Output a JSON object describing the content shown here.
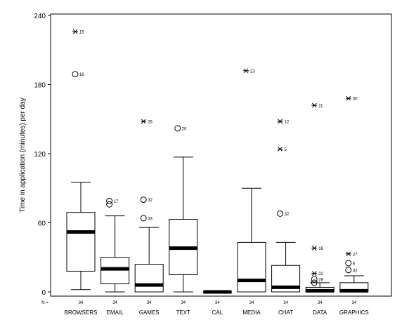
{
  "chart_data": {
    "type": "boxplot",
    "ylabel": "Time in application (minutes) per day",
    "ylim": [
      0,
      240
    ],
    "yticks": [
      0,
      60,
      120,
      180,
      240
    ],
    "n_label": "N =",
    "grid": false,
    "categories": [
      "BROWSERS",
      "EMAIL",
      "GAMES",
      "TEXT",
      "CAL",
      "MEDIA",
      "CHAT",
      "DATA",
      "GRAPHICS"
    ],
    "n": [
      "34",
      "34",
      "34",
      "34",
      "34",
      "34",
      "34",
      "34",
      "34"
    ],
    "boxes": [
      {
        "category": "BROWSERS",
        "whisker_low": 2,
        "q1": 18,
        "median": 52,
        "q3": 69,
        "whisker_high": 95
      },
      {
        "category": "EMAIL",
        "whisker_low": 0,
        "q1": 7,
        "median": 20,
        "q3": 30,
        "whisker_high": 66
      },
      {
        "category": "GAMES",
        "whisker_low": 0,
        "q1": 0,
        "median": 6,
        "q3": 24,
        "whisker_high": 56
      },
      {
        "category": "TEXT",
        "whisker_low": 0,
        "q1": 15,
        "median": 38,
        "q3": 63,
        "whisker_high": 117
      },
      {
        "category": "CAL",
        "whisker_low": 0,
        "q1": 0,
        "median": 0,
        "q3": 0,
        "whisker_high": 0
      },
      {
        "category": "MEDIA",
        "whisker_low": 0,
        "q1": 0,
        "median": 10,
        "q3": 43,
        "whisker_high": 90
      },
      {
        "category": "CHAT",
        "whisker_low": 0,
        "q1": 0,
        "median": 4,
        "q3": 23,
        "whisker_high": 43
      },
      {
        "category": "DATA",
        "whisker_low": 0,
        "q1": 0,
        "median": 1,
        "q3": 4,
        "whisker_high": 8
      },
      {
        "category": "GRAPHICS",
        "whisker_low": 0,
        "q1": 0,
        "median": 1,
        "q3": 8,
        "whisker_high": 14
      }
    ],
    "outliers": [
      {
        "category": "BROWSERS",
        "value": 226,
        "label": "15",
        "marker": "star"
      },
      {
        "category": "BROWSERS",
        "value": 189,
        "label": "16",
        "marker": "circle"
      },
      {
        "category": "EMAIL",
        "value": 79,
        "label": "17",
        "marker": "circle"
      },
      {
        "category": "EMAIL",
        "value": 76,
        "label": "",
        "marker": "circle"
      },
      {
        "category": "GAMES",
        "value": 148,
        "label": "26",
        "marker": "star"
      },
      {
        "category": "GAMES",
        "value": 80,
        "label": "32",
        "marker": "circle"
      },
      {
        "category": "GAMES",
        "value": 64,
        "label": "33",
        "marker": "circle"
      },
      {
        "category": "TEXT",
        "value": 142,
        "label": "20",
        "marker": "circle"
      },
      {
        "category": "MEDIA",
        "value": 192,
        "label": "23",
        "marker": "star"
      },
      {
        "category": "CHAT",
        "value": 148,
        "label": "12",
        "marker": "star"
      },
      {
        "category": "CHAT",
        "value": 124,
        "label": "5",
        "marker": "star"
      },
      {
        "category": "CHAT",
        "value": 68,
        "label": "32",
        "marker": "circle"
      },
      {
        "category": "DATA",
        "value": 162,
        "label": "11",
        "marker": "star"
      },
      {
        "category": "DATA",
        "value": 38,
        "label": "16",
        "marker": "star"
      },
      {
        "category": "DATA",
        "value": 16,
        "label": "22",
        "marker": "star"
      },
      {
        "category": "DATA",
        "value": 11,
        "label": "28",
        "marker": "circle"
      },
      {
        "category": "DATA",
        "value": 8,
        "label": "",
        "marker": "circle"
      },
      {
        "category": "GRAPHICS",
        "value": 168,
        "label": "30",
        "marker": "star"
      },
      {
        "category": "GRAPHICS",
        "value": 33,
        "label": "27",
        "marker": "star"
      },
      {
        "category": "GRAPHICS",
        "value": 25,
        "label": "6",
        "marker": "circle"
      },
      {
        "category": "GRAPHICS",
        "value": 19,
        "label": "32",
        "marker": "circle"
      }
    ]
  }
}
